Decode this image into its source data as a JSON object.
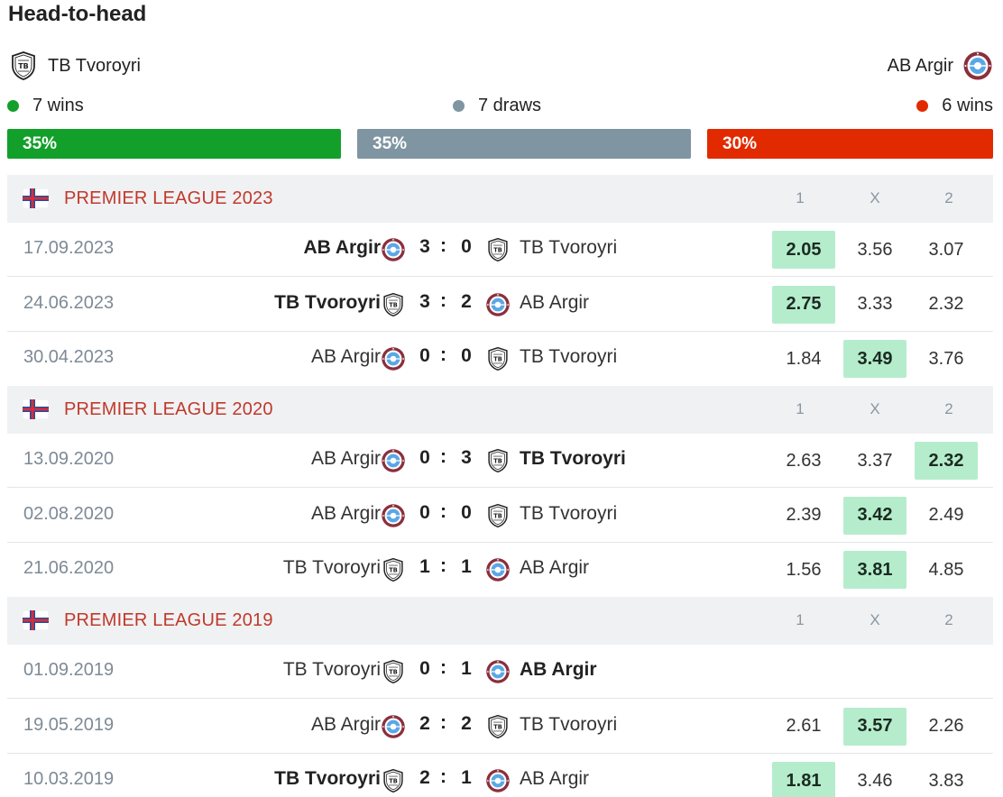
{
  "title": "Head-to-head",
  "home_team": "TB Tvoroyri",
  "away_team": "AB Argir",
  "summary": {
    "home_wins": "7 wins",
    "draws": "7 draws",
    "away_wins": "6 wins",
    "home_pct": "35%",
    "draw_pct": "35%",
    "away_pct": "30%"
  },
  "colors": {
    "win": "#12a02a",
    "draw": "#7f95a1",
    "loss": "#e22a00",
    "highlight": "#b5edcc",
    "league": "#c0392b"
  },
  "odds_headers": {
    "one": "1",
    "x": "X",
    "two": "2"
  },
  "sections": [
    {
      "league": "PREMIER LEAGUE 2023",
      "matches": [
        {
          "date": "17.09.2023",
          "home": "AB Argir",
          "home_score": "3",
          "away_score": "0",
          "away": "TB Tvoroyri",
          "o1": "2.05",
          "ox": "3.56",
          "o2": "3.07"
        },
        {
          "date": "24.06.2023",
          "home": "TB Tvoroyri",
          "home_score": "3",
          "away_score": "2",
          "away": "AB Argir",
          "o1": "2.75",
          "ox": "3.33",
          "o2": "2.32"
        },
        {
          "date": "30.04.2023",
          "home": "AB Argir",
          "home_score": "0",
          "away_score": "0",
          "away": "TB Tvoroyri",
          "o1": "1.84",
          "ox": "3.49",
          "o2": "3.76"
        }
      ]
    },
    {
      "league": "PREMIER LEAGUE 2020",
      "matches": [
        {
          "date": "13.09.2020",
          "home": "AB Argir",
          "home_score": "0",
          "away_score": "3",
          "away": "TB Tvoroyri",
          "o1": "2.63",
          "ox": "3.37",
          "o2": "2.32"
        },
        {
          "date": "02.08.2020",
          "home": "AB Argir",
          "home_score": "0",
          "away_score": "0",
          "away": "TB Tvoroyri",
          "o1": "2.39",
          "ox": "3.42",
          "o2": "2.49"
        },
        {
          "date": "21.06.2020",
          "home": "TB Tvoroyri",
          "home_score": "1",
          "away_score": "1",
          "away": "AB Argir",
          "o1": "1.56",
          "ox": "3.81",
          "o2": "4.85"
        }
      ]
    },
    {
      "league": "PREMIER LEAGUE 2019",
      "matches": [
        {
          "date": "01.09.2019",
          "home": "TB Tvoroyri",
          "home_score": "0",
          "away_score": "1",
          "away": "AB Argir",
          "o1": "",
          "ox": "",
          "o2": ""
        },
        {
          "date": "19.05.2019",
          "home": "AB Argir",
          "home_score": "2",
          "away_score": "2",
          "away": "TB Tvoroyri",
          "o1": "2.61",
          "ox": "3.57",
          "o2": "2.26"
        },
        {
          "date": "10.03.2019",
          "home": "TB Tvoroyri",
          "home_score": "2",
          "away_score": "1",
          "away": "AB Argir",
          "o1": "1.81",
          "ox": "3.46",
          "o2": "3.83"
        }
      ]
    }
  ]
}
